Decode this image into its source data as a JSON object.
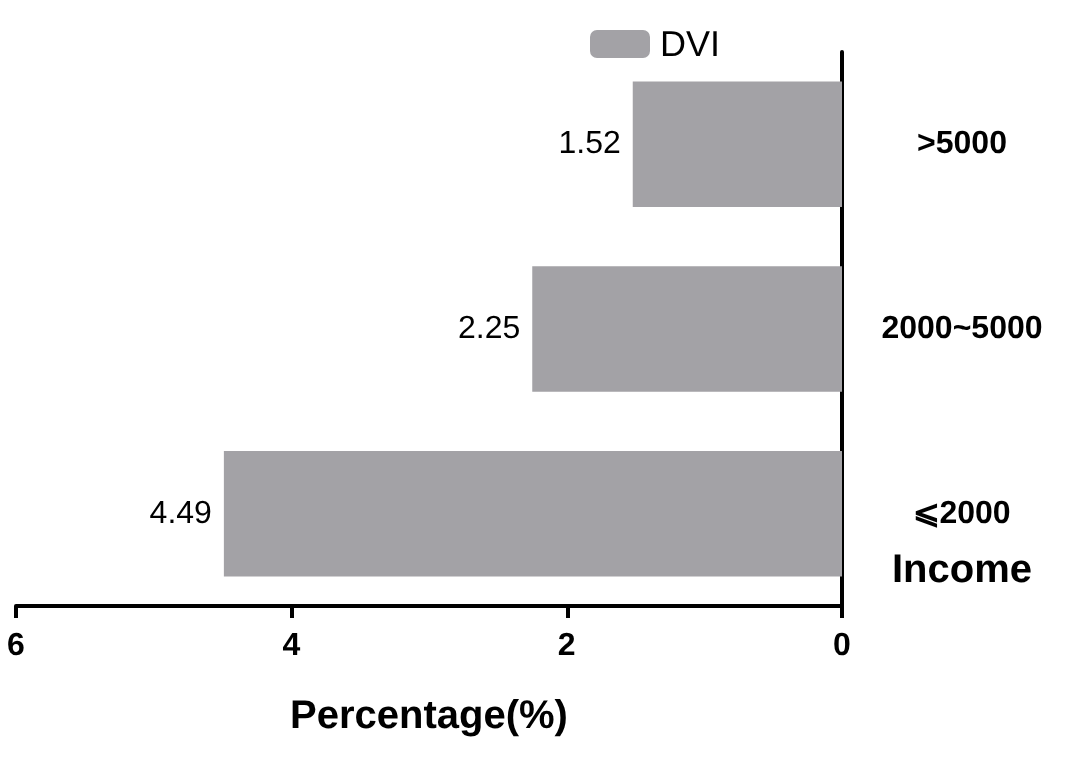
{
  "chart_data": {
    "type": "bar",
    "orientation": "horizontal",
    "xlabel": "Percentage(%)",
    "ylabel": "Income",
    "categories": [
      ">5000",
      "2000~5000",
      "⩽2000"
    ],
    "series": [
      {
        "name": "DVI",
        "color": "#a3a2a6",
        "values": [
          1.52,
          2.25,
          4.49
        ]
      }
    ],
    "xlim": [
      6,
      0
    ],
    "xticks": [
      6,
      4,
      2,
      0
    ],
    "data_labels": true,
    "grid": false,
    "legend": "top"
  }
}
